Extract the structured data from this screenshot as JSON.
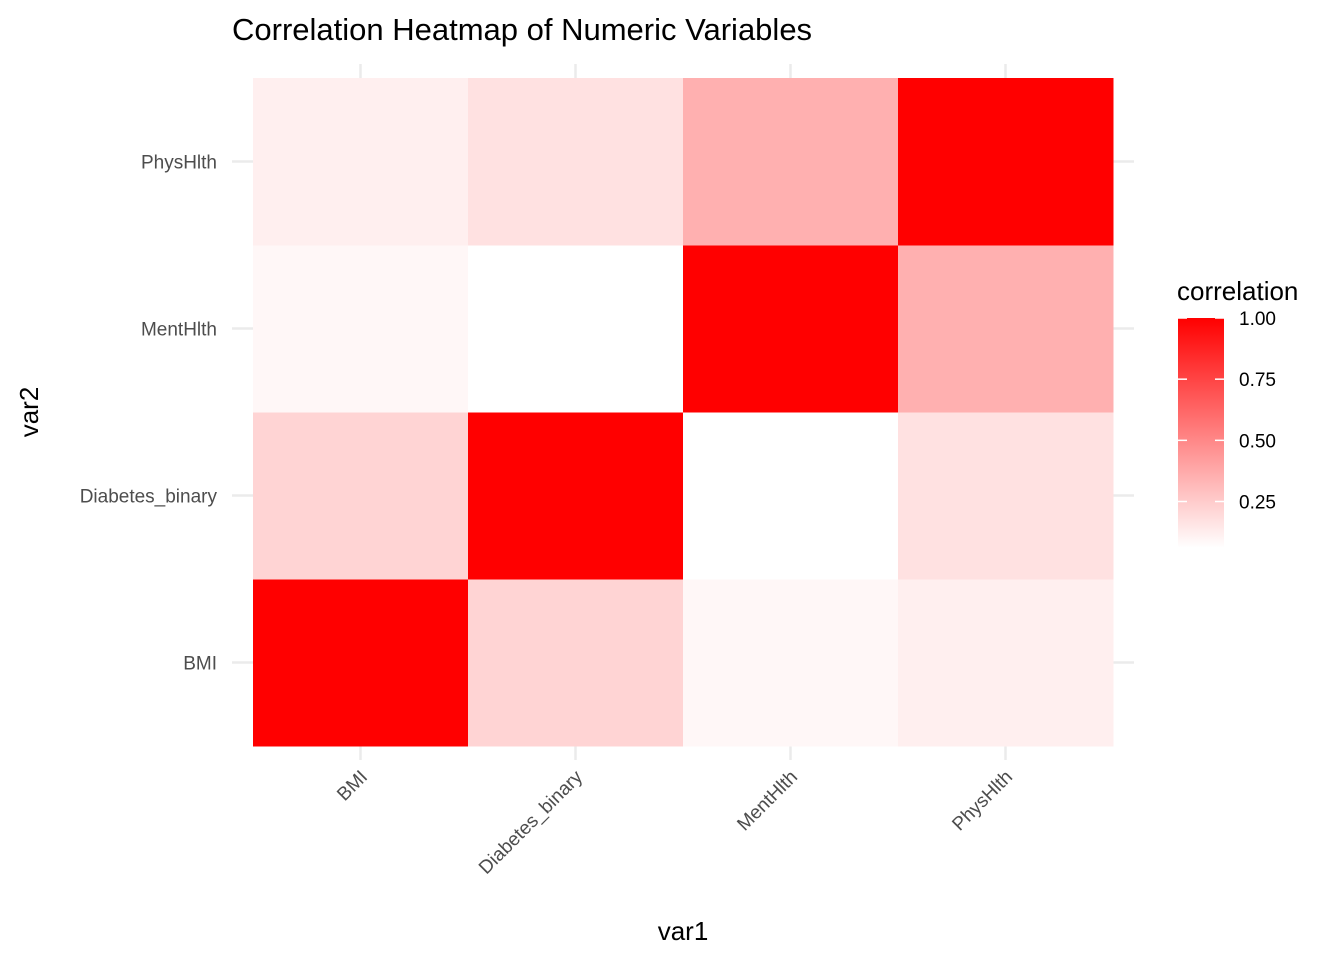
{
  "chart_data": {
    "type": "heatmap",
    "title": "Correlation Heatmap of Numeric Variables",
    "xlabel": "var1",
    "ylabel": "var2",
    "x_categories": [
      "BMI",
      "Diabetes_binary",
      "MentHlth",
      "PhysHlth"
    ],
    "y_categories": [
      "BMI",
      "Diabetes_binary",
      "MentHlth",
      "PhysHlth"
    ],
    "matrix": [
      [
        1.0,
        0.22,
        0.09,
        0.12
      ],
      [
        0.22,
        1.0,
        0.06,
        0.17
      ],
      [
        0.09,
        0.06,
        1.0,
        0.35
      ],
      [
        0.12,
        0.17,
        0.35,
        1.0
      ]
    ],
    "legend": {
      "title": "correlation",
      "ticks": [
        0.25,
        0.5,
        0.75,
        1.0
      ],
      "tick_labels": [
        "0.25",
        "0.50",
        "0.75",
        "1.00"
      ],
      "range": [
        0.06,
        1.0
      ],
      "placement": "right"
    },
    "colors": {
      "low": "#ffffff",
      "high": "#ff0000"
    },
    "grid": true
  }
}
